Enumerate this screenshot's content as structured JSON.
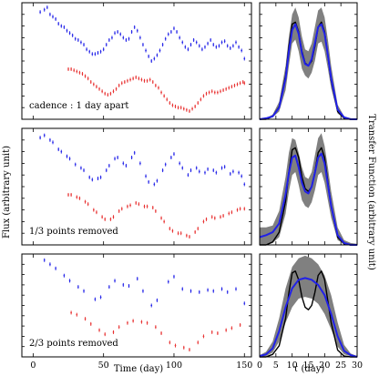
{
  "chart_data": [
    {
      "type": "scatter",
      "panel": "light-curve",
      "annotation": "cadence : 1 day apart",
      "xlim": [
        -8,
        155
      ],
      "ylim": [
        0,
        10
      ],
      "series": [
        {
          "color": "#2020e8",
          "x": [
            5,
            8,
            10,
            12,
            14,
            16,
            18,
            20,
            22,
            24,
            26,
            28,
            30,
            32,
            34,
            36,
            38,
            40,
            42,
            44,
            46,
            48,
            50,
            52,
            54,
            56,
            58,
            60,
            62,
            64,
            66,
            68,
            70,
            72,
            74,
            76,
            78,
            80,
            82,
            84,
            86,
            88,
            90,
            92,
            94,
            96,
            98,
            100,
            102,
            104,
            106,
            108,
            110,
            112,
            114,
            116,
            118,
            120,
            122,
            124,
            126,
            128,
            130,
            132,
            134,
            136,
            138,
            140,
            142,
            144,
            146,
            148,
            150
          ],
          "y": [
            9.2,
            9.4,
            9.6,
            9.0,
            8.8,
            8.6,
            8.2,
            8.0,
            7.9,
            7.6,
            7.4,
            7.2,
            6.9,
            6.8,
            6.6,
            6.4,
            6.0,
            5.8,
            5.6,
            5.6,
            5.7,
            5.8,
            6.0,
            6.4,
            6.8,
            7.0,
            7.4,
            7.5,
            7.3,
            7.0,
            6.8,
            6.9,
            7.5,
            7.9,
            7.6,
            7.0,
            6.4,
            5.9,
            5.4,
            5.0,
            5.2,
            5.5,
            5.9,
            6.4,
            6.9,
            7.3,
            7.5,
            7.8,
            7.5,
            7.0,
            6.6,
            6.2,
            6.0,
            6.4,
            6.8,
            6.6,
            6.3,
            6.0,
            6.2,
            6.5,
            6.8,
            6.4,
            6.2,
            6.3,
            6.6,
            6.7,
            6.3,
            6.1,
            6.3,
            6.6,
            6.2,
            5.9,
            5.2
          ]
        },
        {
          "color": "#e83030",
          "x": [
            25,
            27,
            29,
            31,
            33,
            35,
            37,
            39,
            41,
            43,
            45,
            47,
            49,
            51,
            53,
            55,
            57,
            59,
            61,
            63,
            65,
            67,
            69,
            71,
            73,
            75,
            77,
            79,
            81,
            83,
            85,
            87,
            89,
            91,
            93,
            95,
            97,
            99,
            101,
            103,
            105,
            107,
            109,
            111,
            113,
            115,
            117,
            119,
            121,
            123,
            125,
            127,
            129,
            131,
            133,
            135,
            137,
            139,
            141,
            143,
            145,
            147,
            149,
            150
          ],
          "y": [
            4.3,
            4.3,
            4.2,
            4.1,
            4.0,
            3.9,
            3.7,
            3.5,
            3.2,
            3.0,
            2.8,
            2.6,
            2.4,
            2.2,
            2.1,
            2.2,
            2.4,
            2.6,
            2.9,
            3.1,
            3.2,
            3.3,
            3.4,
            3.5,
            3.6,
            3.5,
            3.4,
            3.3,
            3.3,
            3.4,
            3.2,
            2.9,
            2.7,
            2.3,
            2.0,
            1.7,
            1.4,
            1.2,
            1.1,
            1.0,
            1.0,
            0.9,
            0.8,
            0.7,
            0.9,
            1.1,
            1.4,
            1.7,
            2.0,
            2.2,
            2.3,
            2.4,
            2.3,
            2.3,
            2.4,
            2.5,
            2.6,
            2.7,
            2.8,
            2.9,
            3.0,
            3.1,
            3.2,
            3.1
          ]
        }
      ]
    },
    {
      "type": "line",
      "panel": "transfer-function",
      "xlim": [
        0,
        30
      ],
      "ylim": [
        0,
        1.2
      ],
      "band": {
        "color": "#808080",
        "x": [
          0,
          2,
          4,
          6,
          8,
          9,
          10,
          11,
          12,
          13,
          14,
          15,
          16,
          17,
          18,
          19,
          20,
          21,
          22,
          24,
          26,
          28,
          30
        ],
        "upper": [
          0,
          0.01,
          0.05,
          0.18,
          0.55,
          0.85,
          1.08,
          1.15,
          1.05,
          0.85,
          0.72,
          0.7,
          0.78,
          0.95,
          1.12,
          1.15,
          1.05,
          0.82,
          0.55,
          0.15,
          0.03,
          0.01,
          0
        ],
        "lower": [
          0,
          0,
          0.02,
          0.08,
          0.3,
          0.55,
          0.78,
          0.82,
          0.7,
          0.52,
          0.45,
          0.42,
          0.48,
          0.6,
          0.78,
          0.8,
          0.7,
          0.52,
          0.32,
          0.06,
          0.01,
          0,
          0
        ]
      },
      "series": [
        {
          "color": "#000000",
          "x": [
            0,
            2,
            4,
            6,
            8,
            9,
            10,
            11,
            12,
            13,
            14,
            15,
            16,
            17,
            18,
            19,
            20,
            21,
            22,
            24,
            26,
            28,
            30
          ],
          "y": [
            0,
            0,
            0.03,
            0.13,
            0.45,
            0.75,
            0.98,
            1.0,
            0.9,
            0.7,
            0.58,
            0.55,
            0.6,
            0.75,
            0.95,
            1.0,
            0.9,
            0.65,
            0.4,
            0.08,
            0.01,
            0,
            0
          ]
        },
        {
          "color": "#2020e8",
          "x": [
            0,
            2,
            4,
            6,
            8,
            9,
            10,
            11,
            12,
            13,
            14,
            15,
            16,
            17,
            18,
            19,
            20,
            21,
            22,
            24,
            26,
            28,
            30
          ],
          "y": [
            0,
            0.01,
            0.03,
            0.12,
            0.42,
            0.7,
            0.92,
            0.98,
            0.88,
            0.68,
            0.57,
            0.55,
            0.62,
            0.78,
            0.95,
            0.98,
            0.88,
            0.66,
            0.42,
            0.1,
            0.02,
            0,
            0
          ]
        }
      ]
    },
    {
      "type": "scatter",
      "panel": "light-curve",
      "annotation": "1/3 points removed",
      "xlim": [
        -8,
        155
      ],
      "ylim": [
        0,
        10
      ],
      "series": [
        {
          "color": "#2020e8",
          "x": [
            5,
            8,
            12,
            14,
            18,
            20,
            24,
            26,
            30,
            34,
            36,
            40,
            42,
            46,
            48,
            52,
            54,
            58,
            60,
            64,
            66,
            70,
            72,
            76,
            80,
            82,
            86,
            88,
            92,
            94,
            98,
            100,
            104,
            106,
            110,
            112,
            116,
            118,
            122,
            124,
            128,
            130,
            134,
            136,
            140,
            142,
            146,
            148,
            150
          ],
          "y": [
            9.2,
            9.4,
            9.0,
            8.8,
            8.2,
            8.0,
            7.6,
            7.4,
            6.9,
            6.6,
            6.4,
            5.8,
            5.6,
            5.7,
            5.8,
            6.4,
            6.8,
            7.4,
            7.5,
            7.0,
            6.8,
            7.5,
            7.9,
            7.0,
            5.9,
            5.4,
            5.2,
            5.5,
            6.4,
            6.9,
            7.5,
            7.8,
            7.0,
            6.6,
            6.0,
            6.4,
            6.6,
            6.3,
            6.2,
            6.5,
            6.4,
            6.2,
            6.6,
            6.7,
            6.1,
            6.3,
            6.2,
            5.9,
            5.2
          ]
        },
        {
          "color": "#e83030",
          "x": [
            25,
            27,
            31,
            33,
            37,
            39,
            43,
            45,
            49,
            51,
            55,
            57,
            61,
            63,
            67,
            69,
            73,
            75,
            79,
            81,
            85,
            87,
            91,
            93,
            97,
            99,
            103,
            105,
            109,
            111,
            115,
            117,
            121,
            123,
            127,
            129,
            133,
            135,
            139,
            141,
            145,
            147,
            150
          ],
          "y": [
            4.3,
            4.3,
            4.1,
            4.0,
            3.7,
            3.5,
            3.0,
            2.8,
            2.4,
            2.2,
            2.2,
            2.4,
            2.9,
            3.1,
            3.3,
            3.4,
            3.6,
            3.5,
            3.3,
            3.3,
            3.2,
            2.9,
            2.3,
            2.0,
            1.4,
            1.2,
            1.0,
            1.0,
            0.8,
            0.7,
            1.1,
            1.4,
            2.0,
            2.2,
            2.4,
            2.3,
            2.4,
            2.5,
            2.7,
            2.8,
            3.0,
            3.1,
            3.1
          ]
        }
      ]
    },
    {
      "type": "line",
      "panel": "transfer-function",
      "xlim": [
        0,
        30
      ],
      "ylim": [
        0,
        1.2
      ],
      "band": {
        "color": "#808080",
        "x": [
          0,
          2,
          4,
          6,
          8,
          9,
          10,
          11,
          12,
          13,
          14,
          15,
          16,
          17,
          18,
          19,
          20,
          21,
          22,
          24,
          26,
          28,
          30
        ],
        "upper": [
          0.18,
          0.18,
          0.2,
          0.35,
          0.7,
          0.95,
          1.1,
          1.08,
          0.95,
          0.8,
          0.7,
          0.68,
          0.75,
          0.92,
          1.1,
          1.15,
          1.02,
          0.8,
          0.55,
          0.18,
          0.05,
          0.02,
          0.01
        ],
        "lower": [
          0,
          0,
          0.02,
          0.08,
          0.32,
          0.55,
          0.72,
          0.75,
          0.62,
          0.46,
          0.4,
          0.38,
          0.44,
          0.56,
          0.72,
          0.75,
          0.64,
          0.46,
          0.28,
          0.05,
          0.01,
          0,
          0
        ]
      },
      "series": [
        {
          "color": "#000000",
          "x": [
            0,
            2,
            4,
            6,
            8,
            9,
            10,
            11,
            12,
            13,
            14,
            15,
            16,
            17,
            18,
            19,
            20,
            21,
            22,
            24,
            26,
            28,
            30
          ],
          "y": [
            0,
            0,
            0.03,
            0.13,
            0.45,
            0.75,
            0.98,
            1.0,
            0.9,
            0.7,
            0.58,
            0.55,
            0.6,
            0.75,
            0.95,
            1.0,
            0.9,
            0.65,
            0.4,
            0.08,
            0.01,
            0,
            0
          ]
        },
        {
          "color": "#2020e8",
          "x": [
            0,
            2,
            4,
            6,
            8,
            9,
            10,
            11,
            12,
            13,
            14,
            15,
            16,
            17,
            18,
            19,
            20,
            21,
            22,
            24,
            26,
            28,
            30
          ],
          "y": [
            0.08,
            0.1,
            0.13,
            0.22,
            0.52,
            0.74,
            0.9,
            0.92,
            0.8,
            0.64,
            0.55,
            0.53,
            0.6,
            0.74,
            0.9,
            0.94,
            0.84,
            0.62,
            0.4,
            0.1,
            0.02,
            0,
            0
          ]
        }
      ]
    },
    {
      "type": "scatter",
      "panel": "light-curve",
      "annotation": "2/3 points removed",
      "xlim": [
        -8,
        155
      ],
      "ylim": [
        0,
        10
      ],
      "series": [
        {
          "color": "#2020e8",
          "x": [
            8,
            12,
            16,
            22,
            26,
            32,
            36,
            44,
            48,
            54,
            58,
            64,
            68,
            74,
            78,
            84,
            88,
            96,
            100,
            106,
            112,
            118,
            124,
            128,
            134,
            138,
            144,
            150
          ],
          "y": [
            9.4,
            9.0,
            8.6,
            7.9,
            7.4,
            6.8,
            6.4,
            5.6,
            5.8,
            6.8,
            7.4,
            7.0,
            6.9,
            7.6,
            6.4,
            5.0,
            5.5,
            7.3,
            7.8,
            6.6,
            6.4,
            6.3,
            6.5,
            6.4,
            6.6,
            6.3,
            6.6,
            5.2
          ]
        },
        {
          "color": "#e83030",
          "x": [
            27,
            31,
            37,
            41,
            47,
            51,
            57,
            61,
            67,
            71,
            77,
            81,
            87,
            91,
            97,
            101,
            107,
            111,
            117,
            121,
            127,
            131,
            137,
            141,
            147
          ],
          "y": [
            4.3,
            4.1,
            3.7,
            3.2,
            2.6,
            2.2,
            2.4,
            2.9,
            3.3,
            3.5,
            3.4,
            3.3,
            2.9,
            2.3,
            1.4,
            1.1,
            0.9,
            0.7,
            1.4,
            2.0,
            2.4,
            2.3,
            2.6,
            2.8,
            3.1
          ]
        }
      ]
    },
    {
      "type": "line",
      "panel": "transfer-function",
      "xlim": [
        0,
        30
      ],
      "ylim": [
        0,
        1.2
      ],
      "band": {
        "color": "#808080",
        "x": [
          0,
          2,
          4,
          6,
          8,
          10,
          12,
          14,
          16,
          18,
          20,
          22,
          24,
          26,
          28,
          30
        ],
        "upper": [
          0.02,
          0.06,
          0.18,
          0.45,
          0.8,
          1.05,
          1.15,
          1.18,
          1.15,
          1.08,
          0.95,
          0.72,
          0.4,
          0.14,
          0.04,
          0.01
        ],
        "lower": [
          0,
          0.01,
          0.05,
          0.18,
          0.4,
          0.58,
          0.68,
          0.7,
          0.68,
          0.62,
          0.5,
          0.32,
          0.12,
          0.03,
          0.01,
          0
        ]
      },
      "series": [
        {
          "color": "#000000",
          "x": [
            0,
            2,
            4,
            6,
            8,
            9,
            10,
            11,
            12,
            13,
            14,
            15,
            16,
            17,
            18,
            19,
            20,
            21,
            22,
            24,
            26,
            28,
            30
          ],
          "y": [
            0,
            0,
            0.03,
            0.13,
            0.45,
            0.75,
            0.98,
            1.0,
            0.9,
            0.7,
            0.58,
            0.55,
            0.6,
            0.75,
            0.95,
            1.0,
            0.9,
            0.65,
            0.4,
            0.08,
            0.01,
            0,
            0
          ]
        },
        {
          "color": "#2020e8",
          "x": [
            0,
            2,
            4,
            6,
            8,
            10,
            12,
            14,
            16,
            18,
            20,
            22,
            24,
            26,
            28,
            30
          ],
          "y": [
            0.01,
            0.03,
            0.1,
            0.3,
            0.58,
            0.8,
            0.9,
            0.92,
            0.9,
            0.84,
            0.72,
            0.5,
            0.24,
            0.07,
            0.02,
            0
          ]
        }
      ]
    }
  ],
  "labels": {
    "left_ylabel": "Flux (arbitrary unit)",
    "right_ylabel": "Transfer Function (arbitrary unit)",
    "left_xlabel": "Time (day)",
    "right_xlabel": "τ (day)",
    "left_xticks": [
      "0",
      "50",
      "100",
      "150"
    ],
    "right_xticks": [
      "0",
      "5",
      "10",
      "15",
      "20",
      "25",
      "30"
    ]
  }
}
